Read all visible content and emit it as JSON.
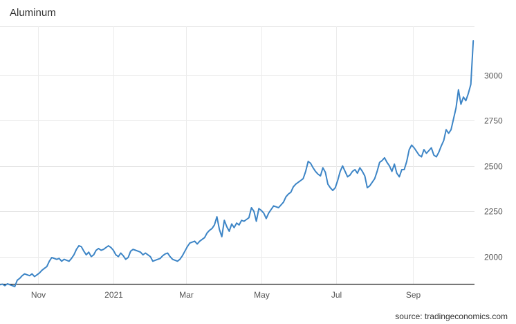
{
  "chart_data": {
    "type": "line",
    "title": "Aluminum",
    "source": "source: tradingeconomics.com",
    "xlabel": "",
    "ylabel": "",
    "x_tick_labels": [
      "Nov",
      "2021",
      "Mar",
      "May",
      "Jul",
      "Sep"
    ],
    "x_tick_dates": [
      "2020-11-01",
      "2021-01-01",
      "2021-03-01",
      "2021-05-01",
      "2021-07-01",
      "2021-09-01"
    ],
    "y_ticks": [
      2000,
      2250,
      2500,
      2750,
      3000
    ],
    "xlim": [
      "2020-10-01",
      "2021-10-21"
    ],
    "ylim": [
      1850,
      3270
    ],
    "grid": true,
    "legend": "none",
    "series": [
      {
        "color": "#3d85c6",
        "points": [
          [
            "2020-10-01",
            1845
          ],
          [
            "2020-10-03",
            1848
          ],
          [
            "2020-10-05",
            1840
          ],
          [
            "2020-10-07",
            1850
          ],
          [
            "2020-10-09",
            1845
          ],
          [
            "2020-10-11",
            1840
          ],
          [
            "2020-10-13",
            1835
          ],
          [
            "2020-10-15",
            1870
          ],
          [
            "2020-10-17",
            1880
          ],
          [
            "2020-10-19",
            1895
          ],
          [
            "2020-10-21",
            1905
          ],
          [
            "2020-10-23",
            1900
          ],
          [
            "2020-10-25",
            1895
          ],
          [
            "2020-10-27",
            1905
          ],
          [
            "2020-10-29",
            1890
          ],
          [
            "2020-10-31",
            1900
          ],
          [
            "2020-11-02",
            1910
          ],
          [
            "2020-11-04",
            1925
          ],
          [
            "2020-11-06",
            1935
          ],
          [
            "2020-11-08",
            1945
          ],
          [
            "2020-11-10",
            1975
          ],
          [
            "2020-11-12",
            1995
          ],
          [
            "2020-11-14",
            1990
          ],
          [
            "2020-11-16",
            1985
          ],
          [
            "2020-11-18",
            1990
          ],
          [
            "2020-11-20",
            1975
          ],
          [
            "2020-11-22",
            1985
          ],
          [
            "2020-11-24",
            1980
          ],
          [
            "2020-11-26",
            1975
          ],
          [
            "2020-11-28",
            1990
          ],
          [
            "2020-11-30",
            2010
          ],
          [
            "2020-12-02",
            2040
          ],
          [
            "2020-12-04",
            2060
          ],
          [
            "2020-12-06",
            2055
          ],
          [
            "2020-12-08",
            2030
          ],
          [
            "2020-12-10",
            2010
          ],
          [
            "2020-12-12",
            2025
          ],
          [
            "2020-12-14",
            2000
          ],
          [
            "2020-12-16",
            2010
          ],
          [
            "2020-12-18",
            2035
          ],
          [
            "2020-12-20",
            2045
          ],
          [
            "2020-12-22",
            2035
          ],
          [
            "2020-12-24",
            2040
          ],
          [
            "2020-12-26",
            2050
          ],
          [
            "2020-12-28",
            2060
          ],
          [
            "2020-12-30",
            2050
          ],
          [
            "2021-01-01",
            2035
          ],
          [
            "2021-01-03",
            2010
          ],
          [
            "2021-01-05",
            2000
          ],
          [
            "2021-01-07",
            2020
          ],
          [
            "2021-01-09",
            2005
          ],
          [
            "2021-01-11",
            1985
          ],
          [
            "2021-01-13",
            1995
          ],
          [
            "2021-01-15",
            2030
          ],
          [
            "2021-01-17",
            2040
          ],
          [
            "2021-01-19",
            2035
          ],
          [
            "2021-01-21",
            2030
          ],
          [
            "2021-01-23",
            2025
          ],
          [
            "2021-01-25",
            2010
          ],
          [
            "2021-01-27",
            2020
          ],
          [
            "2021-01-29",
            2010
          ],
          [
            "2021-01-31",
            2000
          ],
          [
            "2021-02-02",
            1975
          ],
          [
            "2021-02-04",
            1980
          ],
          [
            "2021-02-06",
            1985
          ],
          [
            "2021-02-08",
            1990
          ],
          [
            "2021-02-10",
            2005
          ],
          [
            "2021-02-12",
            2015
          ],
          [
            "2021-02-14",
            2020
          ],
          [
            "2021-02-16",
            2000
          ],
          [
            "2021-02-18",
            1985
          ],
          [
            "2021-02-20",
            1980
          ],
          [
            "2021-02-22",
            1975
          ],
          [
            "2021-02-24",
            1985
          ],
          [
            "2021-02-26",
            2005
          ],
          [
            "2021-02-28",
            2030
          ],
          [
            "2021-03-02",
            2055
          ],
          [
            "2021-03-04",
            2075
          ],
          [
            "2021-03-06",
            2080
          ],
          [
            "2021-03-08",
            2085
          ],
          [
            "2021-03-10",
            2070
          ],
          [
            "2021-03-12",
            2085
          ],
          [
            "2021-03-14",
            2095
          ],
          [
            "2021-03-16",
            2105
          ],
          [
            "2021-03-18",
            2130
          ],
          [
            "2021-03-20",
            2145
          ],
          [
            "2021-03-22",
            2155
          ],
          [
            "2021-03-24",
            2175
          ],
          [
            "2021-03-26",
            2220
          ],
          [
            "2021-03-28",
            2150
          ],
          [
            "2021-03-30",
            2110
          ],
          [
            "2021-04-01",
            2200
          ],
          [
            "2021-04-03",
            2165
          ],
          [
            "2021-04-05",
            2140
          ],
          [
            "2021-04-07",
            2180
          ],
          [
            "2021-04-09",
            2160
          ],
          [
            "2021-04-11",
            2185
          ],
          [
            "2021-04-13",
            2175
          ],
          [
            "2021-04-15",
            2200
          ],
          [
            "2021-04-17",
            2195
          ],
          [
            "2021-04-19",
            2205
          ],
          [
            "2021-04-21",
            2215
          ],
          [
            "2021-04-23",
            2270
          ],
          [
            "2021-04-25",
            2250
          ],
          [
            "2021-04-27",
            2195
          ],
          [
            "2021-04-29",
            2265
          ],
          [
            "2021-05-01",
            2255
          ],
          [
            "2021-05-03",
            2240
          ],
          [
            "2021-05-05",
            2210
          ],
          [
            "2021-05-07",
            2240
          ],
          [
            "2021-05-09",
            2260
          ],
          [
            "2021-05-11",
            2280
          ],
          [
            "2021-05-13",
            2275
          ],
          [
            "2021-05-15",
            2270
          ],
          [
            "2021-05-17",
            2285
          ],
          [
            "2021-05-19",
            2300
          ],
          [
            "2021-05-21",
            2330
          ],
          [
            "2021-05-23",
            2345
          ],
          [
            "2021-05-25",
            2355
          ],
          [
            "2021-05-27",
            2385
          ],
          [
            "2021-05-29",
            2400
          ],
          [
            "2021-05-31",
            2410
          ],
          [
            "2021-06-02",
            2420
          ],
          [
            "2021-06-04",
            2430
          ],
          [
            "2021-06-06",
            2470
          ],
          [
            "2021-06-08",
            2525
          ],
          [
            "2021-06-10",
            2515
          ],
          [
            "2021-06-12",
            2490
          ],
          [
            "2021-06-14",
            2470
          ],
          [
            "2021-06-16",
            2455
          ],
          [
            "2021-06-18",
            2445
          ],
          [
            "2021-06-20",
            2490
          ],
          [
            "2021-06-22",
            2465
          ],
          [
            "2021-06-24",
            2400
          ],
          [
            "2021-06-26",
            2380
          ],
          [
            "2021-06-28",
            2365
          ],
          [
            "2021-06-30",
            2380
          ],
          [
            "2021-07-02",
            2420
          ],
          [
            "2021-07-04",
            2470
          ],
          [
            "2021-07-06",
            2500
          ],
          [
            "2021-07-08",
            2470
          ],
          [
            "2021-07-10",
            2440
          ],
          [
            "2021-07-12",
            2450
          ],
          [
            "2021-07-14",
            2470
          ],
          [
            "2021-07-16",
            2480
          ],
          [
            "2021-07-18",
            2460
          ],
          [
            "2021-07-20",
            2490
          ],
          [
            "2021-07-22",
            2470
          ],
          [
            "2021-07-24",
            2445
          ],
          [
            "2021-07-26",
            2380
          ],
          [
            "2021-07-28",
            2390
          ],
          [
            "2021-07-30",
            2410
          ],
          [
            "2021-08-01",
            2430
          ],
          [
            "2021-08-03",
            2470
          ],
          [
            "2021-08-05",
            2520
          ],
          [
            "2021-08-07",
            2530
          ],
          [
            "2021-08-09",
            2545
          ],
          [
            "2021-08-11",
            2520
          ],
          [
            "2021-08-13",
            2500
          ],
          [
            "2021-08-15",
            2470
          ],
          [
            "2021-08-17",
            2510
          ],
          [
            "2021-08-19",
            2460
          ],
          [
            "2021-08-21",
            2440
          ],
          [
            "2021-08-23",
            2480
          ],
          [
            "2021-08-25",
            2480
          ],
          [
            "2021-08-27",
            2525
          ],
          [
            "2021-08-29",
            2590
          ],
          [
            "2021-08-31",
            2615
          ],
          [
            "2021-09-02",
            2600
          ],
          [
            "2021-09-04",
            2580
          ],
          [
            "2021-09-06",
            2560
          ],
          [
            "2021-09-08",
            2550
          ],
          [
            "2021-09-10",
            2590
          ],
          [
            "2021-09-12",
            2570
          ],
          [
            "2021-09-14",
            2585
          ],
          [
            "2021-09-16",
            2600
          ],
          [
            "2021-09-18",
            2560
          ],
          [
            "2021-09-20",
            2550
          ],
          [
            "2021-09-22",
            2575
          ],
          [
            "2021-09-24",
            2610
          ],
          [
            "2021-09-26",
            2640
          ],
          [
            "2021-09-28",
            2700
          ],
          [
            "2021-09-30",
            2680
          ],
          [
            "2021-10-02",
            2700
          ],
          [
            "2021-10-04",
            2760
          ],
          [
            "2021-10-06",
            2820
          ],
          [
            "2021-10-08",
            2920
          ],
          [
            "2021-10-10",
            2840
          ],
          [
            "2021-10-12",
            2880
          ],
          [
            "2021-10-14",
            2860
          ],
          [
            "2021-10-16",
            2900
          ],
          [
            "2021-10-18",
            2950
          ],
          [
            "2021-10-20",
            3190
          ]
        ]
      }
    ]
  }
}
